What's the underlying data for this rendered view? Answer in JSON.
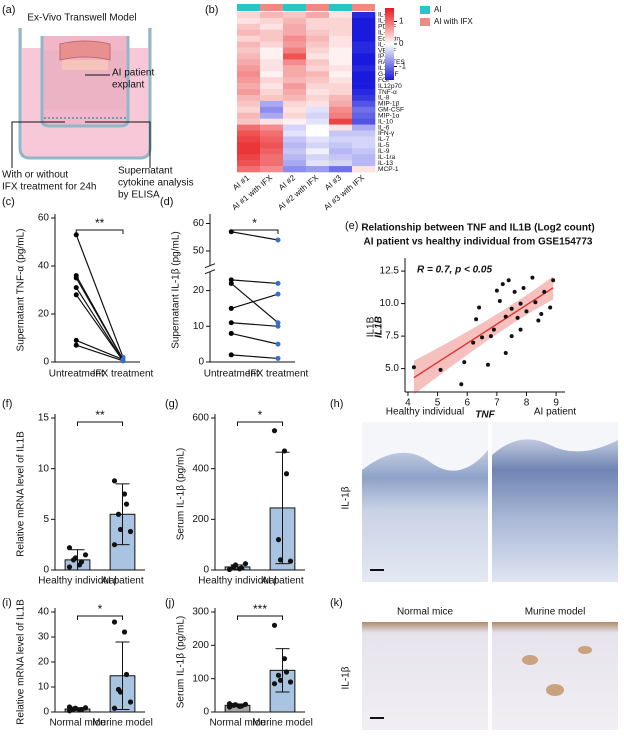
{
  "panel_a": {
    "panel": "(a)",
    "title": "Ex-Vivo Transwell Model",
    "explant_label": [
      "AI patient",
      "explant"
    ],
    "left_caption": [
      "With or without",
      "IFX treatment for 24h"
    ],
    "right_caption": [
      "Supernatant",
      "cytokine analysis",
      "by ELISA"
    ]
  },
  "panel_h": {
    "panel": "(h)",
    "left_title": "Healthy individual",
    "right_title": "AI patient",
    "row_label": "IL-1β"
  },
  "panel_k": {
    "panel": "(k)",
    "left_title": "Normal mice",
    "right_title": "Murine model",
    "row_label": "IL-1β"
  },
  "chart_data": [
    {
      "type": "heatmap",
      "panel": "(b)",
      "columns": [
        "AI #1",
        "AI #1 with IFX",
        "AI #2",
        "AI #2 with IFX",
        "AI #3",
        "AI #3 with IFX"
      ],
      "rows": [
        "IL-2",
        "IL-18",
        "PDGF",
        "IL-4",
        "Eotaxin",
        "IL-17",
        "VEGF",
        "IP-10",
        "RANTES",
        "IL15",
        "G-CSF",
        "FGF",
        "IL12p70",
        "TNF-α",
        "IL-8",
        "MIP-1β",
        "GM-CSF",
        "MIP-1α",
        "IL-10",
        "IL-6",
        "IFN-γ",
        "IL-7",
        "IL-5",
        "IL-9",
        "IL-1ra",
        "IL-13",
        "MCP-1"
      ],
      "highlight_rows": [
        "IL-18",
        "TNF-α"
      ],
      "highlight_color": "#e02020",
      "values": [
        [
          0.3,
          0.5,
          0.4,
          0.6,
          0.2,
          -1.5
        ],
        [
          0.2,
          0.3,
          0.5,
          0.3,
          0.3,
          -1.6
        ],
        [
          0.4,
          0.2,
          0.6,
          0.3,
          0.3,
          -1.6
        ],
        [
          0.5,
          0.4,
          0.6,
          0.4,
          0.3,
          -1.6
        ],
        [
          0.3,
          0.4,
          0.8,
          0.5,
          0.2,
          -1.6
        ],
        [
          0.5,
          0.3,
          0.7,
          0.4,
          0.2,
          -1.5
        ],
        [
          0.4,
          0.1,
          0.9,
          0.3,
          0.1,
          -1.5
        ],
        [
          0.5,
          0.1,
          1.2,
          0.2,
          0.1,
          -1.6
        ],
        [
          0.6,
          0.2,
          0.8,
          0.4,
          0.1,
          -1.6
        ],
        [
          0.7,
          0.2,
          0.6,
          0.3,
          0.2,
          -1.5
        ],
        [
          0.8,
          0.1,
          0.6,
          0.5,
          0.1,
          -1.6
        ],
        [
          0.7,
          0.3,
          0.5,
          0.4,
          0.2,
          -1.6
        ],
        [
          0.6,
          0.2,
          0.7,
          0.3,
          0.3,
          -1.6
        ],
        [
          0.7,
          0.3,
          0.6,
          0.2,
          0.3,
          -1.5
        ],
        [
          0.5,
          0.4,
          0.5,
          0.3,
          0.5,
          -1.4
        ],
        [
          0.4,
          -0.6,
          0.3,
          0.2,
          0.6,
          -1.2
        ],
        [
          0.3,
          -0.8,
          0.2,
          -0.2,
          0.8,
          -1.0
        ],
        [
          0.5,
          -0.6,
          0.3,
          -0.3,
          0.9,
          -1.1
        ],
        [
          0.4,
          0.2,
          0.1,
          -0.2,
          1.3,
          -1.2
        ],
        [
          1.0,
          0.8,
          -0.3,
          0.0,
          0.2,
          -0.6
        ],
        [
          1.2,
          1.0,
          -0.2,
          0.0,
          -0.4,
          -0.4
        ],
        [
          1.3,
          1.1,
          -0.4,
          -0.2,
          -0.3,
          -0.3
        ],
        [
          1.4,
          1.2,
          -0.5,
          -0.3,
          -0.4,
          -0.3
        ],
        [
          1.4,
          1.1,
          -0.4,
          -0.1,
          -0.5,
          -0.4
        ],
        [
          1.3,
          1.0,
          -0.5,
          -0.3,
          -0.4,
          -0.5
        ],
        [
          1.2,
          1.0,
          -0.6,
          -0.2,
          -0.3,
          -0.5
        ],
        [
          1.0,
          0.8,
          -0.8,
          -0.7,
          -1.0,
          0.2
        ]
      ],
      "colorbar_lim": [
        -1.6,
        1.6
      ],
      "colorbar_ticks": [
        1,
        0,
        -1
      ],
      "high_color": "#e8191a",
      "low_color": "#1a1adc",
      "series": [
        {
          "name": "AI",
          "color": "#27c4c8"
        },
        {
          "name": "AI with IFX",
          "color": "#f08a80"
        }
      ]
    },
    {
      "type": "paired",
      "panel": "(c)",
      "ylabel": "Supernatant TNF-α (pg/mL)",
      "categories": [
        "Untreatment",
        "IFX treatment"
      ],
      "values": [
        [
          53,
          2
        ],
        [
          36,
          1
        ],
        [
          35,
          1
        ],
        [
          31,
          0.5
        ],
        [
          28,
          0.5
        ],
        [
          9,
          1
        ],
        [
          7,
          0.5
        ]
      ],
      "colors": [
        "#000000",
        "#3a6fc4"
      ],
      "ylim": [
        0,
        60
      ],
      "yticks": [
        0,
        20,
        40,
        60
      ],
      "significance": "**"
    },
    {
      "type": "paired",
      "panel": "(d)",
      "ylabel": "Supernatant IL-1β (pg/mL)",
      "categories": [
        "Untreatment",
        "IFX treatment"
      ],
      "values": [
        [
          57,
          54
        ],
        [
          23,
          22
        ],
        [
          22,
          11
        ],
        [
          15,
          19
        ],
        [
          11,
          10
        ],
        [
          8,
          5
        ],
        [
          2,
          1
        ]
      ],
      "colors": [
        "#000000",
        "#3a6fc4"
      ],
      "ylim": [
        0,
        62
      ],
      "axis_break": [
        25,
        45
      ],
      "yticks": [
        0,
        10,
        20,
        50,
        60
      ],
      "significance": "*"
    },
    {
      "type": "scatter",
      "panel": "(e)",
      "title": "Relationship between TNF and IL1B (Log2 count)",
      "subtitle": "AI patient vs healthy individual from GSE154773",
      "annotation": "R = 0.7, p < 0.05",
      "xlabel": "TNF",
      "ylabel": "IL1B",
      "color": "#111111",
      "fit_color": "#e0302a",
      "x": [
        4.2,
        5.1,
        5.8,
        5.9,
        6.2,
        6.3,
        6.4,
        6.5,
        6.7,
        6.8,
        6.9,
        7.0,
        7.1,
        7.2,
        7.3,
        7.3,
        7.4,
        7.5,
        7.5,
        7.6,
        7.7,
        7.8,
        7.8,
        7.9,
        8.0,
        8.2,
        8.3,
        8.4,
        8.5,
        8.6,
        8.8,
        8.9
      ],
      "y": [
        5.1,
        4.9,
        3.8,
        5.5,
        7.0,
        8.8,
        9.7,
        7.4,
        5.3,
        7.5,
        8.0,
        11.0,
        10.2,
        11.5,
        6.2,
        9.0,
        11.8,
        7.5,
        9.6,
        10.9,
        8.9,
        10.0,
        8.0,
        11.2,
        9.4,
        12.0,
        10.1,
        8.7,
        9.2,
        10.9,
        9.7,
        11.8
      ],
      "xlim": [
        3.9,
        9.3
      ],
      "xticks": [
        4,
        5,
        6,
        7,
        8,
        9
      ],
      "ylim": [
        3.2,
        13.2
      ],
      "yticks": [
        {
          "value": 5,
          "label": "5.0"
        },
        {
          "value": 7.5,
          "label": "7.5"
        },
        {
          "value": 10,
          "label": "10.0"
        },
        {
          "value": 12.5,
          "label": "12.5"
        }
      ]
    },
    {
      "type": "bar",
      "panel": "(f)",
      "ylabel": "Relative mRNA level of IL1B",
      "categories": [
        "Healthy individual",
        "AI patient"
      ],
      "values": [
        1.0,
        5.5
      ],
      "errors": [
        1.0,
        3.0
      ],
      "points": [
        [
          0.3,
          0.5,
          0.8,
          1.0,
          1.2,
          1.5,
          2.2
        ],
        [
          8.8,
          7.5,
          6.5,
          5.5,
          4.0,
          3.8,
          2.5
        ]
      ],
      "colors": [
        "#a9c4e0",
        "#a9c4e0"
      ],
      "ylim": [
        0,
        15
      ],
      "yticks": [
        0,
        5,
        10,
        15
      ],
      "significance": "**"
    },
    {
      "type": "bar",
      "panel": "(g)",
      "ylabel": "Serum IL-1β (pg/mL)",
      "categories": [
        "Healthy individual",
        "AI patient"
      ],
      "values": [
        12,
        245
      ],
      "errors": [
        8,
        220
      ],
      "points": [
        [
          2,
          5,
          8,
          12,
          20,
          25
        ],
        [
          550,
          470,
          380,
          120,
          40,
          35
        ]
      ],
      "colors": [
        "#a9c4e0",
        "#a9c4e0"
      ],
      "ylim": [
        0,
        600
      ],
      "yticks": [
        0,
        200,
        400,
        600
      ],
      "significance": "*"
    },
    {
      "type": "bar",
      "panel": "(i)",
      "ylabel": "Relative mRNA level of IL1B",
      "categories": [
        "Normal mice",
        "Murine model"
      ],
      "values": [
        1.2,
        14.5
      ],
      "errors": [
        0.5,
        13.5
      ],
      "points": [
        [
          0.5,
          0.8,
          1.0,
          1.2,
          1.5,
          1.7,
          2.0
        ],
        [
          36,
          32,
          15,
          9,
          8,
          4,
          1.5
        ]
      ],
      "colors": [
        "#a6a6a6",
        "#a9c4e0"
      ],
      "ylim": [
        0,
        40
      ],
      "yticks": [
        0,
        10,
        20,
        30,
        40
      ],
      "significance": "*"
    },
    {
      "type": "bar",
      "panel": "(j)",
      "ylabel": "Serum IL-1β (pg/mL)",
      "categories": [
        "Normal mice",
        "Murine model"
      ],
      "values": [
        20,
        125
      ],
      "errors": [
        4,
        65
      ],
      "points": [
        [
          15,
          17,
          18,
          20,
          22,
          23,
          25
        ],
        [
          260,
          160,
          120,
          110,
          95,
          90,
          85
        ]
      ],
      "colors": [
        "#a6a6a6",
        "#a9c4e0"
      ],
      "ylim": [
        0,
        300
      ],
      "yticks": [
        0,
        100,
        200,
        300
      ],
      "significance": "***"
    }
  ]
}
